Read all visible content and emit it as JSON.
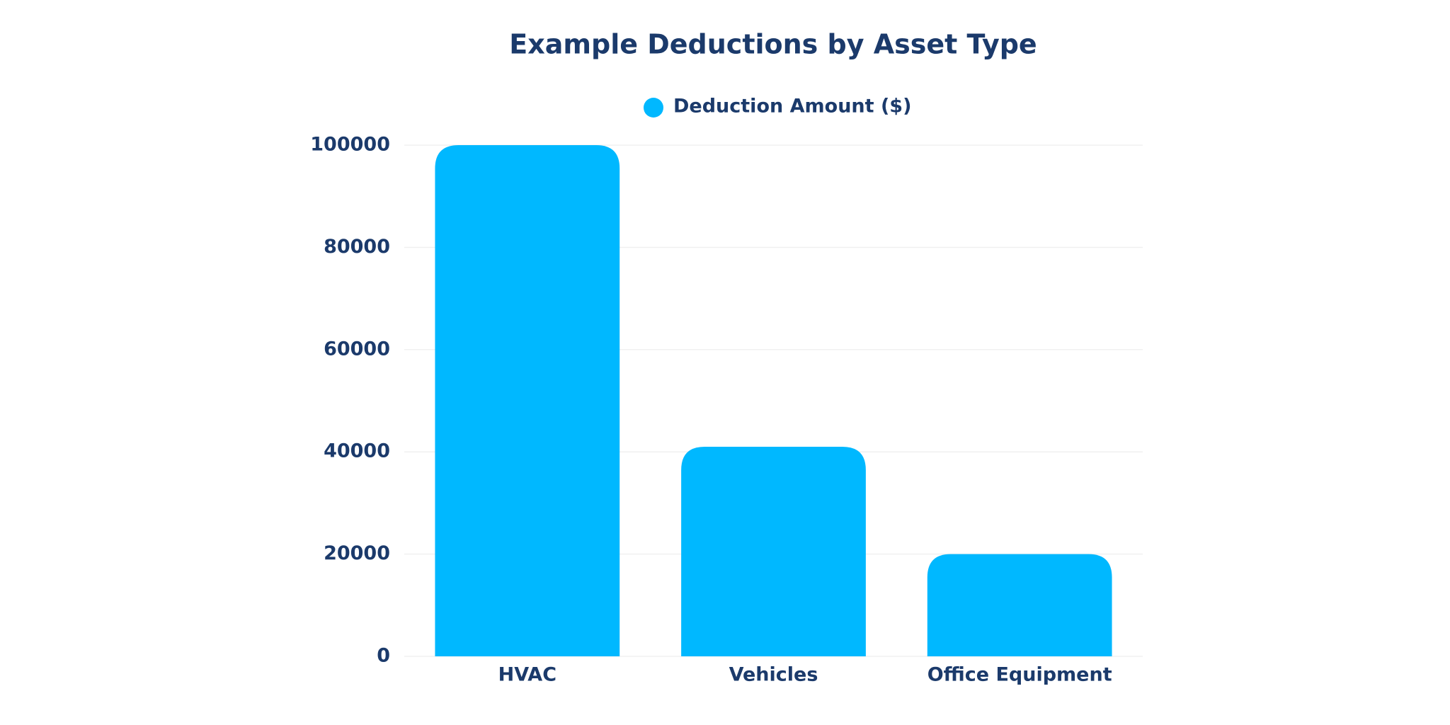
{
  "chart_data": {
    "type": "bar",
    "title": "Example Deductions by Asset Type",
    "categories": [
      "HVAC",
      "Vehicles",
      "Office Equipment"
    ],
    "series": [
      {
        "name": "Deduction Amount ($)",
        "color": "#00b8ff",
        "values": [
          100000,
          41000,
          20000
        ]
      }
    ],
    "ylim": [
      0,
      100000
    ],
    "yticks": [
      0,
      20000,
      40000,
      60000,
      80000,
      100000
    ],
    "grid": true,
    "legend": "top"
  }
}
